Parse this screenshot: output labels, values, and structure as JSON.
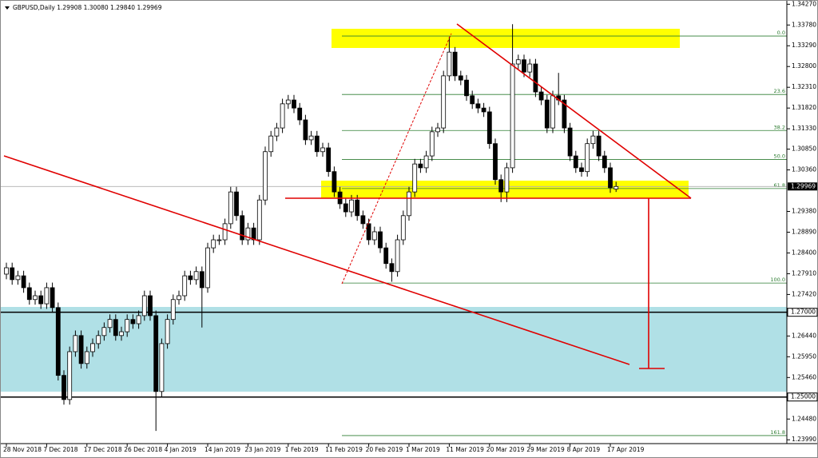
{
  "chart_data": {
    "type": "candlestick",
    "title": "GBPUSD,Daily  1.29908 1.30080 1.29840 1.29969",
    "categories": [
      "28 Nov 2018",
      null,
      null,
      null,
      null,
      null,
      null,
      "7 Dec 2018",
      null,
      null,
      null,
      null,
      null,
      null,
      "17 Dec 2018",
      null,
      null,
      null,
      null,
      null,
      null,
      "26 Dec 2018",
      null,
      null,
      null,
      null,
      null,
      null,
      "4 Jan 2019",
      null,
      null,
      null,
      null,
      null,
      null,
      "14 Jan 2019",
      null,
      null,
      null,
      null,
      null,
      null,
      "23 Jan 2019",
      null,
      null,
      null,
      null,
      null,
      null,
      "1 Feb 2019",
      null,
      null,
      null,
      null,
      null,
      null,
      "11 Feb 2019",
      null,
      null,
      null,
      null,
      null,
      null,
      "20 Feb 2019",
      null,
      null,
      null,
      null,
      null,
      null,
      "1 Mar 2019",
      null,
      null,
      null,
      null,
      null,
      null,
      "11 Mar 2019",
      null,
      null,
      null,
      null,
      null,
      null,
      "20 Mar 2019",
      null,
      null,
      null,
      null,
      null,
      null,
      "29 Mar 2019",
      null,
      null,
      null,
      null,
      null,
      null,
      "8 Apr 2019",
      null,
      null,
      null,
      null,
      null,
      null,
      "17 Apr 2019",
      null
    ],
    "candles": [
      [
        1.279,
        1.2817,
        1.2778,
        1.2805
      ],
      [
        1.2805,
        1.2817,
        1.2765,
        1.2777
      ],
      [
        1.2777,
        1.2798,
        1.2765,
        1.2786
      ],
      [
        1.2786,
        1.2798,
        1.2746,
        1.2758
      ],
      [
        1.2758,
        1.277,
        1.2718,
        1.273
      ],
      [
        1.273,
        1.2751,
        1.2718,
        1.2739
      ],
      [
        1.2739,
        1.2751,
        1.2708,
        1.272
      ],
      [
        1.272,
        1.277,
        1.2708,
        1.2758
      ],
      [
        1.2758,
        1.277,
        1.2699,
        1.2711
      ],
      [
        1.2711,
        1.2723,
        1.2539,
        1.2551
      ],
      [
        1.2551,
        1.2563,
        1.2482,
        1.2494
      ],
      [
        1.2494,
        1.2619,
        1.2482,
        1.2607
      ],
      [
        1.2607,
        1.2657,
        1.2595,
        1.2645
      ],
      [
        1.2645,
        1.2657,
        1.2567,
        1.2579
      ],
      [
        1.2579,
        1.2619,
        1.2567,
        1.2607
      ],
      [
        1.2607,
        1.2638,
        1.2595,
        1.2626
      ],
      [
        1.2626,
        1.2657,
        1.2614,
        1.2645
      ],
      [
        1.2645,
        1.2676,
        1.2633,
        1.2664
      ],
      [
        1.2664,
        1.2695,
        1.2652,
        1.2683
      ],
      [
        1.2683,
        1.2695,
        1.2633,
        1.2645
      ],
      [
        1.2645,
        1.2666,
        1.2633,
        1.2654
      ],
      [
        1.2654,
        1.2695,
        1.2642,
        1.2683
      ],
      [
        1.2683,
        1.2695,
        1.2661,
        1.2673
      ],
      [
        1.2673,
        1.2704,
        1.2661,
        1.2692
      ],
      [
        1.2692,
        1.2751,
        1.268,
        1.2739
      ],
      [
        1.2739,
        1.2751,
        1.268,
        1.2692
      ],
      [
        1.2692,
        1.2704,
        1.242,
        1.2513
      ],
      [
        1.2513,
        1.2638,
        1.2501,
        1.2626
      ],
      [
        1.2626,
        1.2695,
        1.2614,
        1.2683
      ],
      [
        1.2683,
        1.2742,
        1.2671,
        1.273
      ],
      [
        1.273,
        1.2751,
        1.2718,
        1.2739
      ],
      [
        1.2739,
        1.2798,
        1.2727,
        1.2786
      ],
      [
        1.2786,
        1.2798,
        1.2765,
        1.2777
      ],
      [
        1.2777,
        1.2808,
        1.2765,
        1.2796
      ],
      [
        1.2796,
        1.2808,
        1.2664,
        1.2758
      ],
      [
        1.2758,
        1.2864,
        1.2746,
        1.2852
      ],
      [
        1.2852,
        1.2883,
        1.284,
        1.2871
      ],
      [
        1.2871,
        1.2883,
        1.2859,
        1.2871
      ],
      [
        1.2871,
        1.2921,
        1.2859,
        1.2909
      ],
      [
        1.2909,
        1.2996,
        1.2897,
        1.2984
      ],
      [
        1.2984,
        1.2996,
        1.2916,
        1.2928
      ],
      [
        1.2928,
        1.294,
        1.2859,
        1.2871
      ],
      [
        1.2871,
        1.2911,
        1.2859,
        1.2899
      ],
      [
        1.2899,
        1.2911,
        1.2859,
        1.2871
      ],
      [
        1.2871,
        1.2977,
        1.2859,
        1.2965
      ],
      [
        1.2965,
        1.3091,
        1.2953,
        1.3079
      ],
      [
        1.3079,
        1.3128,
        1.3067,
        1.3116
      ],
      [
        1.3116,
        1.3147,
        1.3104,
        1.3135
      ],
      [
        1.3135,
        1.3204,
        1.3123,
        1.3192
      ],
      [
        1.3192,
        1.3213,
        1.318,
        1.3201
      ],
      [
        1.3201,
        1.3213,
        1.317,
        1.3182
      ],
      [
        1.3182,
        1.3194,
        1.3142,
        1.3154
      ],
      [
        1.3154,
        1.3166,
        1.3095,
        1.3107
      ],
      [
        1.3107,
        1.3128,
        1.3095,
        1.3116
      ],
      [
        1.3116,
        1.3128,
        1.3067,
        1.3079
      ],
      [
        1.3079,
        1.31,
        1.3067,
        1.3088
      ],
      [
        1.3088,
        1.31,
        1.302,
        1.3032
      ],
      [
        1.3032,
        1.3044,
        1.2972,
        1.2984
      ],
      [
        1.2984,
        1.2996,
        1.2944,
        1.2956
      ],
      [
        1.2956,
        1.2968,
        1.2925,
        1.2937
      ],
      [
        1.2937,
        1.2977,
        1.2925,
        1.2965
      ],
      [
        1.2965,
        1.2977,
        1.2916,
        1.2928
      ],
      [
        1.2928,
        1.294,
        1.2897,
        1.2909
      ],
      [
        1.2909,
        1.2921,
        1.2859,
        1.2871
      ],
      [
        1.2871,
        1.2902,
        1.2859,
        1.289
      ],
      [
        1.289,
        1.2902,
        1.284,
        1.2852
      ],
      [
        1.2852,
        1.2864,
        1.2803,
        1.2815
      ],
      [
        1.2815,
        1.2827,
        1.2772,
        1.2796
      ],
      [
        1.2796,
        1.2883,
        1.2784,
        1.2871
      ],
      [
        1.2871,
        1.294,
        1.2859,
        1.2928
      ],
      [
        1.2928,
        1.2996,
        1.2916,
        1.2984
      ],
      [
        1.2984,
        1.3062,
        1.2972,
        1.305
      ],
      [
        1.305,
        1.3062,
        1.3029,
        1.3041
      ],
      [
        1.3041,
        1.3081,
        1.3029,
        1.3069
      ],
      [
        1.3069,
        1.3138,
        1.3057,
        1.3126
      ],
      [
        1.3126,
        1.3147,
        1.3114,
        1.3135
      ],
      [
        1.3135,
        1.327,
        1.3123,
        1.3258
      ],
      [
        1.3258,
        1.335,
        1.3246,
        1.3314
      ],
      [
        1.3314,
        1.3326,
        1.3246,
        1.3258
      ],
      [
        1.3258,
        1.327,
        1.3236,
        1.3248
      ],
      [
        1.3248,
        1.326,
        1.3199,
        1.3211
      ],
      [
        1.3211,
        1.3223,
        1.318,
        1.3192
      ],
      [
        1.3192,
        1.3204,
        1.317,
        1.3182
      ],
      [
        1.3182,
        1.3194,
        1.3161,
        1.3173
      ],
      [
        1.3173,
        1.3185,
        1.3086,
        1.3098
      ],
      [
        1.3098,
        1.311,
        1.3001,
        1.3013
      ],
      [
        1.3013,
        1.3025,
        1.296,
        1.2984
      ],
      [
        1.2984,
        1.3053,
        1.296,
        1.3041
      ],
      [
        1.3041,
        1.338,
        1.3029,
        1.3286
      ],
      [
        1.3286,
        1.3308,
        1.3274,
        1.3296
      ],
      [
        1.3296,
        1.3308,
        1.3255,
        1.3267
      ],
      [
        1.3267,
        1.3298,
        1.3255,
        1.3286
      ],
      [
        1.3286,
        1.3298,
        1.3208,
        1.322
      ],
      [
        1.322,
        1.3232,
        1.3189,
        1.3201
      ],
      [
        1.3201,
        1.3213,
        1.3123,
        1.3135
      ],
      [
        1.3135,
        1.3223,
        1.3123,
        1.3211
      ],
      [
        1.3211,
        1.3265,
        1.3189,
        1.3201
      ],
      [
        1.3201,
        1.3213,
        1.3123,
        1.3135
      ],
      [
        1.3135,
        1.3147,
        1.3057,
        1.3069
      ],
      [
        1.3069,
        1.3081,
        1.3029,
        1.3041
      ],
      [
        1.3041,
        1.3053,
        1.302,
        1.3032
      ],
      [
        1.3032,
        1.311,
        1.302,
        1.3098
      ],
      [
        1.3098,
        1.3128,
        1.3086,
        1.3116
      ],
      [
        1.3116,
        1.3128,
        1.3057,
        1.3069
      ],
      [
        1.3069,
        1.3081,
        1.3029,
        1.3041
      ],
      [
        1.3041,
        1.3053,
        1.2982,
        1.2994
      ],
      [
        1.29908,
        1.3008,
        1.2984,
        1.29969
      ]
    ],
    "ylim": [
      1.239,
      1.3437
    ],
    "yticks": [
      {
        "value": 1.3427,
        "label": "1.34270"
      },
      {
        "value": 1.3378,
        "label": "1.33780"
      },
      {
        "value": 1.3329,
        "label": "1.33290"
      },
      {
        "value": 1.328,
        "label": "1.32800"
      },
      {
        "value": 1.3231,
        "label": "1.32310"
      },
      {
        "value": 1.3182,
        "label": "1.31820"
      },
      {
        "value": 1.3133,
        "label": "1.31330"
      },
      {
        "value": 1.3085,
        "label": "1.30850"
      },
      {
        "value": 1.3036,
        "label": "1.30360"
      },
      {
        "value": 1.2938,
        "label": "1.29380"
      },
      {
        "value": 1.2889,
        "label": "1.28890"
      },
      {
        "value": 1.284,
        "label": "1.28400"
      },
      {
        "value": 1.2791,
        "label": "1.27910"
      },
      {
        "value": 1.2742,
        "label": "1.27420"
      },
      {
        "value": 1.2644,
        "label": "1.26440"
      },
      {
        "value": 1.2595,
        "label": "1.25950"
      },
      {
        "value": 1.2546,
        "label": "1.25460"
      },
      {
        "value": 1.2448,
        "label": "1.24480"
      },
      {
        "value": 1.2399,
        "label": "1.23990"
      }
    ],
    "levels": [
      {
        "value": 1.27,
        "label": "1.27000"
      },
      {
        "value": 1.25,
        "label": "1.25000"
      }
    ],
    "last_price": {
      "value": 1.29969,
      "label": "1.29969"
    },
    "fib": [
      {
        "label": "0.0",
        "price": 1.3352
      },
      {
        "label": "23.6",
        "price": 1.3214
      },
      {
        "label": "38.2",
        "price": 1.3129
      },
      {
        "label": "50.0",
        "price": 1.30605
      },
      {
        "label": "61.8",
        "price": 1.2992
      },
      {
        "label": "100.0",
        "price": 1.2769
      },
      {
        "label": "161.8",
        "price": 1.2409
      }
    ],
    "bull_color": "#ffffff",
    "bear_color": "#000000",
    "fib_color": "#2e7d32"
  }
}
